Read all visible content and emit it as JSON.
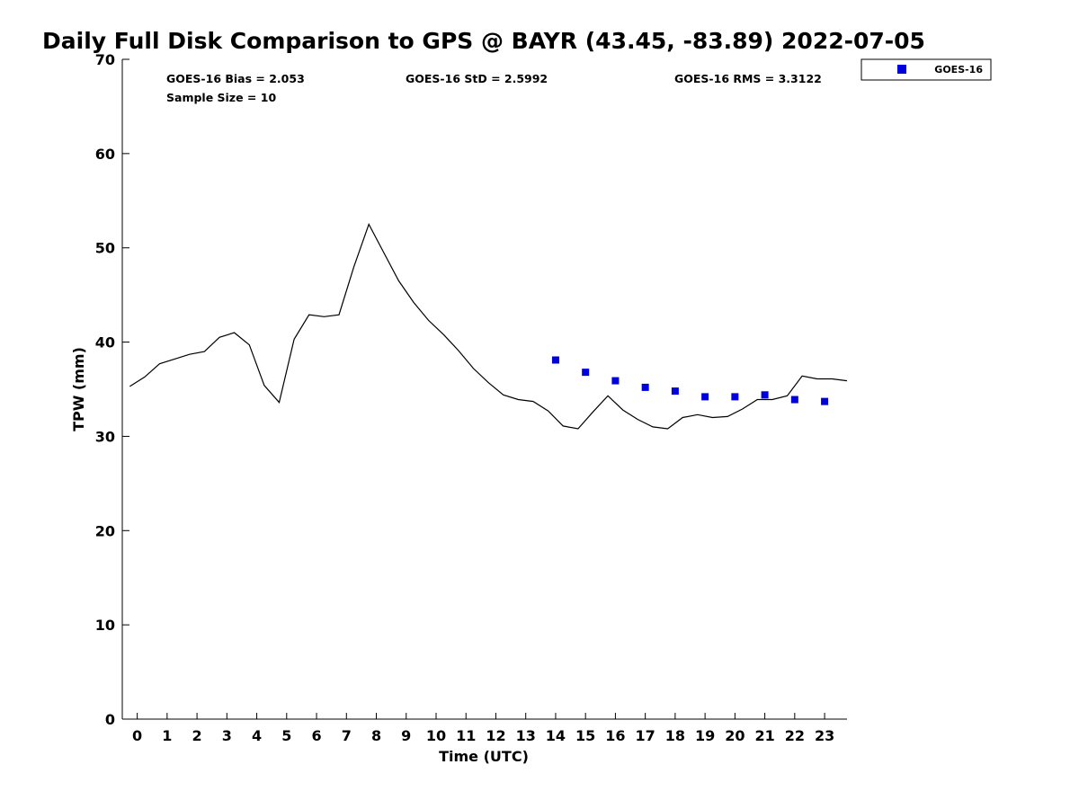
{
  "chart_data": {
    "type": "scatter",
    "title": "Daily Full Disk Comparison to GPS @ BAYR (43.45, -83.89) 2022-07-05",
    "xlabel": "Time (UTC)",
    "ylabel": "TPW (mm)",
    "xlim": [
      -0.5,
      23.75
    ],
    "ylim": [
      0,
      70
    ],
    "x_ticks": [
      0,
      1,
      2,
      3,
      4,
      5,
      6,
      7,
      8,
      9,
      10,
      11,
      12,
      13,
      14,
      15,
      16,
      17,
      18,
      19,
      20,
      21,
      22,
      23
    ],
    "y_ticks": [
      0,
      10,
      20,
      30,
      40,
      50,
      60,
      70
    ],
    "grid": false,
    "legend_position": "top-right, outside plot",
    "stats": {
      "bias": "GOES-16 Bias = 2.053",
      "std": "GOES-16 StD = 2.5992",
      "rms": "GOES-16 RMS = 3.3122",
      "sample_size": "Sample Size = 10"
    },
    "series": [
      {
        "name": "",
        "kind": "line",
        "color": "#000000",
        "x": [
          -0.25,
          0.25,
          0.75,
          1.25,
          1.75,
          2.25,
          2.75,
          3.25,
          3.75,
          4.25,
          4.75,
          5.25,
          5.75,
          6.25,
          6.75,
          7.25,
          7.75,
          8.25,
          8.75,
          9.25,
          9.75,
          10.25,
          10.75,
          11.25,
          11.75,
          12.25,
          12.75,
          13.25,
          13.75,
          14.25,
          14.75,
          15.25,
          15.75,
          16.25,
          16.75,
          17.25,
          17.75,
          18.25,
          18.75,
          19.25,
          19.75,
          20.25,
          20.75,
          21.25,
          21.75,
          22.25,
          22.75,
          23.25,
          23.75
        ],
        "y": [
          35.3,
          36.3,
          37.7,
          38.2,
          38.7,
          39.0,
          40.5,
          41.0,
          39.7,
          35.4,
          33.6,
          40.3,
          42.9,
          42.7,
          42.9,
          48.0,
          52.5,
          49.5,
          46.5,
          44.2,
          42.3,
          40.8,
          39.1,
          37.2,
          35.7,
          34.4,
          33.9,
          33.7,
          32.7,
          31.1,
          30.8,
          32.6,
          34.3,
          32.8,
          31.8,
          31.0,
          30.8,
          32.0,
          32.3,
          32.0,
          32.1,
          32.9,
          33.9,
          33.9,
          34.3,
          36.4,
          36.1,
          36.1,
          35.9
        ]
      },
      {
        "name": "GOES-16",
        "kind": "scatter",
        "marker": "square",
        "color": "#0000dd",
        "x": [
          14,
          15,
          16,
          17,
          18,
          19,
          20,
          21,
          22,
          23
        ],
        "y": [
          38.1,
          36.8,
          35.9,
          35.2,
          34.8,
          34.2,
          34.2,
          34.4,
          33.9,
          33.7
        ]
      }
    ]
  }
}
